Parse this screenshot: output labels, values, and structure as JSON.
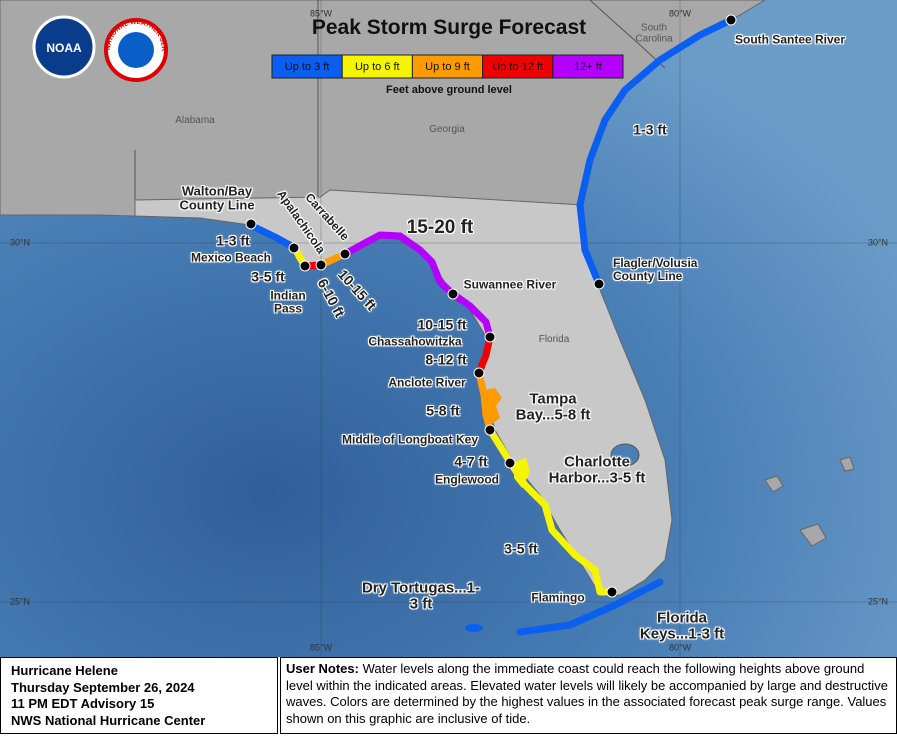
{
  "header": {
    "title": "Peak Storm Surge Forecast",
    "logos": [
      "NOAA",
      "NATIONAL WEATHER SERVICE"
    ]
  },
  "legend": {
    "items": [
      {
        "label": "Up to 3 ft",
        "color": "#0a5ef0"
      },
      {
        "label": "Up to 6 ft",
        "color": "#f5f500"
      },
      {
        "label": "Up to 9 ft",
        "color": "#ff9a00"
      },
      {
        "label": "Up to 12 ft",
        "color": "#f00000"
      },
      {
        "label": "12+ ft",
        "color": "#b400ff"
      }
    ],
    "caption": "Feet above ground level"
  },
  "graticule": {
    "lon": [
      "85°W",
      "80°W"
    ],
    "lat": [
      "30°N",
      "25°N"
    ]
  },
  "regions": [
    "Alabama",
    "Georgia",
    "South Carolina",
    "Florida"
  ],
  "locations": [
    "Walton/Bay County Line",
    "Mexico Beach",
    "Indian Pass",
    "Apalachicola",
    "Carrabelle",
    "Suwannee River",
    "Chassahowitzka",
    "Anclote River",
    "Middle of Longboat Key",
    "Englewood",
    "Flamingo",
    "Flagler/Volusia County Line",
    "South Santee River"
  ],
  "surge_labels": [
    "1-3 ft",
    "3-5 ft",
    "6-10 ft",
    "10-15 ft",
    "15-20 ft",
    "10-15 ft",
    "8-12 ft",
    "5-8 ft",
    "Tampa Bay...5-8 ft",
    "4-7 ft",
    "Charlotte Harbor...3-5 ft",
    "3-5 ft",
    "Dry Tortugas...1-3 ft",
    "Florida Keys...1-3 ft",
    "1-3 ft"
  ],
  "footer": {
    "storm": "Hurricane Helene",
    "date": "Thursday September 26, 2024",
    "advisory": "11 PM EDT Advisory 15",
    "center": "NWS National Hurricane Center"
  },
  "notes": {
    "label": "User Notes:",
    "text": "Water levels along the immediate coast could reach the following heights above ground level within the indicated areas. Elevated water levels will likely be accompanied by large and destructive waves. Colors are determined by the highest values in the associated forecast peak surge range. Values shown on this graphic are inclusive of tide."
  }
}
